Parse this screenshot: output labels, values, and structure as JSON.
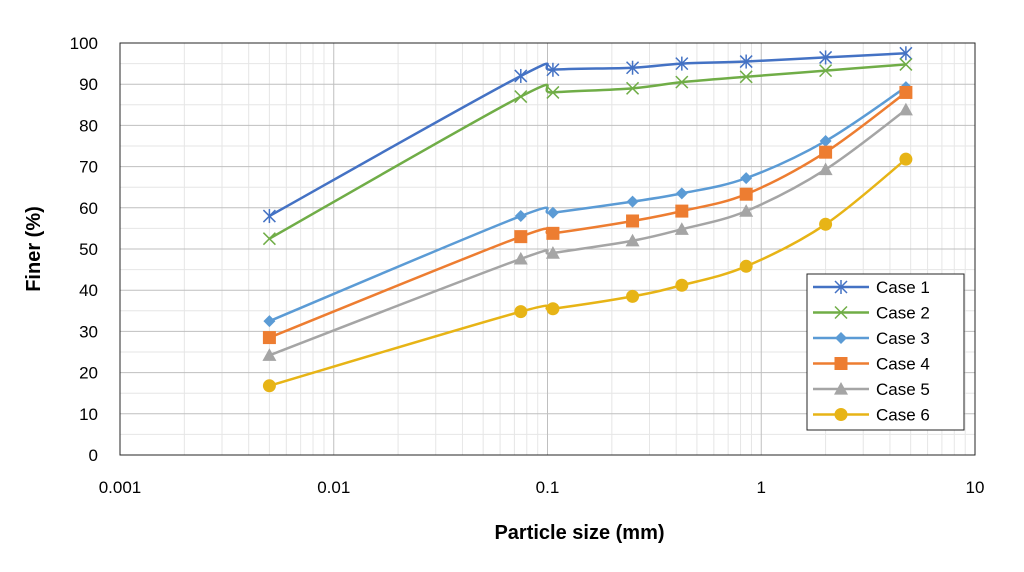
{
  "chart_data": {
    "type": "line",
    "x_scale": "log",
    "xlabel": "Particle size (mm)",
    "ylabel": "Finer (%)",
    "xlim": [
      0.001,
      10
    ],
    "ylim": [
      0,
      100
    ],
    "x_ticks": [
      0.001,
      0.01,
      0.1,
      1,
      10
    ],
    "x_tick_labels": [
      "0.001",
      "0.01",
      "0.1",
      "1",
      "10"
    ],
    "y_ticks": [
      0,
      10,
      20,
      30,
      40,
      50,
      60,
      70,
      80,
      90,
      100
    ],
    "y_tick_labels": [
      "0",
      "10",
      "20",
      "30",
      "40",
      "50",
      "60",
      "70",
      "80",
      "90",
      "100"
    ],
    "grid": "major and minor",
    "legend_position": "lower-right",
    "x": [
      0.005,
      0.075,
      0.106,
      0.25,
      0.425,
      0.85,
      2,
      4.75
    ],
    "series": [
      {
        "name": "Case 1",
        "color": "#4472C4",
        "marker": "asterisk",
        "values": [
          58,
          92,
          93.5,
          94,
          95,
          95.5,
          96.5,
          97.5
        ]
      },
      {
        "name": "Case 2",
        "color": "#70AD47",
        "marker": "x",
        "values": [
          52.5,
          87,
          88,
          89,
          90.5,
          91.8,
          93.3,
          94.8
        ]
      },
      {
        "name": "Case 3",
        "color": "#5B9BD5",
        "marker": "diamond",
        "values": [
          32.5,
          58,
          58.8,
          61.5,
          63.5,
          67.2,
          76.2,
          89.3
        ]
      },
      {
        "name": "Case 4",
        "color": "#ED7D31",
        "marker": "square",
        "values": [
          28.5,
          53,
          53.8,
          56.8,
          59.2,
          63.3,
          73.5,
          88
        ]
      },
      {
        "name": "Case 5",
        "color": "#A5A5A5",
        "marker": "triangle",
        "values": [
          24.2,
          47.6,
          49,
          52,
          54.8,
          59.2,
          69.3,
          83.8
        ]
      },
      {
        "name": "Case 6",
        "color": "#E7B416",
        "marker": "circle",
        "values": [
          16.8,
          34.8,
          35.5,
          38.5,
          41.2,
          45.8,
          56,
          71.8
        ]
      }
    ]
  }
}
